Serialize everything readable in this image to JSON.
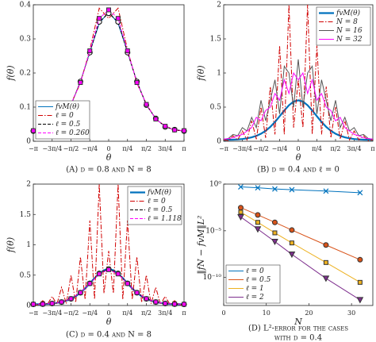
{
  "chart_data": [
    {
      "type": "line",
      "caption": "(A) d = 0.8 and N = 8",
      "xlabel": "θ",
      "ylabel": "f(θ)",
      "x": [
        -3.1416,
        -2.7489,
        -2.3562,
        -1.9635,
        -1.5708,
        -1.1781,
        -0.7854,
        -0.3927,
        0,
        0.3927,
        0.7854,
        1.1781,
        1.5708,
        1.9635,
        2.3562,
        2.7489,
        3.1416
      ],
      "xlim": [
        -3.1416,
        3.1416
      ],
      "xticks": [
        {
          "value": -3.1416,
          "label": "−π"
        },
        {
          "value": -2.3562,
          "label": "−3π/4"
        },
        {
          "value": -1.5708,
          "label": "−π/2"
        },
        {
          "value": -0.7854,
          "label": "−π/4"
        },
        0,
        {
          "value": 0.7854,
          "label": "π/4"
        },
        {
          "value": 1.5708,
          "label": "π/2"
        },
        {
          "value": 2.3562,
          "label": "3π/4"
        },
        {
          "value": 3.1416,
          "label": "π"
        }
      ],
      "ylim": [
        0,
        0.4
      ],
      "yticks": [
        0,
        0.1,
        0.2,
        0.3,
        0.4
      ],
      "legend": "lower left",
      "series": [
        {
          "name": "fvM(θ)",
          "color": "#0072bd",
          "linestyle": "-",
          "values": [
            0.03,
            0.033,
            0.043,
            0.066,
            0.107,
            0.174,
            0.262,
            0.345,
            0.38,
            0.345,
            0.262,
            0.174,
            0.107,
            0.066,
            0.043,
            0.033,
            0.03
          ]
        },
        {
          "name": "ℓ = 0",
          "color": "#d00000",
          "linestyle": "-.",
          "values": [
            0.031,
            0.032,
            0.045,
            0.064,
            0.11,
            0.17,
            0.268,
            0.39,
            0.36,
            0.39,
            0.268,
            0.17,
            0.11,
            0.064,
            0.045,
            0.032,
            0.031
          ]
        },
        {
          "name": "ℓ = 0.5",
          "color": "#000000",
          "linestyle": "--",
          "marker": "o",
          "marker_face": "#ffffff",
          "values": [
            0.03,
            0.034,
            0.042,
            0.067,
            0.106,
            0.175,
            0.26,
            0.35,
            0.375,
            0.35,
            0.26,
            0.175,
            0.106,
            0.067,
            0.042,
            0.034,
            0.03
          ]
        },
        {
          "name": "ℓ = 0.260",
          "color": "#ff00ff",
          "linestyle": "--",
          "marker": "s",
          "marker_face": "#ff00ff",
          "values": [
            0.031,
            0.033,
            0.044,
            0.065,
            0.108,
            0.172,
            0.265,
            0.36,
            0.385,
            0.36,
            0.265,
            0.172,
            0.108,
            0.065,
            0.044,
            0.033,
            0.031
          ]
        }
      ]
    },
    {
      "type": "line",
      "caption": "(B) d = 0.4 and ℓ = 0",
      "xlabel": "θ",
      "ylabel": "f(θ)",
      "x": [
        -3.1416,
        -2.9452,
        -2.7489,
        -2.5525,
        -2.3562,
        -2.1598,
        -1.9635,
        -1.7671,
        -1.5708,
        -1.3744,
        -1.1781,
        -0.9817,
        -0.7854,
        -0.589,
        -0.3927,
        -0.1963,
        0,
        0.1963,
        0.3927,
        0.589,
        0.7854,
        0.9817,
        1.1781,
        1.3744,
        1.5708,
        1.7671,
        1.9635,
        2.1598,
        2.3562,
        2.5525,
        2.7489,
        2.9452,
        3.1416
      ],
      "xlim": [
        -3.1416,
        3.1416
      ],
      "xticks": [
        {
          "value": -3.1416,
          "label": "−π"
        },
        {
          "value": -2.3562,
          "label": "−3π/4"
        },
        {
          "value": -1.5708,
          "label": "−π/2"
        },
        {
          "value": -0.7854,
          "label": "−π/4"
        },
        0,
        {
          "value": 0.7854,
          "label": "π/4"
        },
        {
          "value": 1.5708,
          "label": "π/2"
        },
        {
          "value": 2.3562,
          "label": "3π/4"
        },
        {
          "value": 3.1416,
          "label": "π"
        }
      ],
      "ylim": [
        0,
        2
      ],
      "yticks": [
        0,
        0.5,
        1,
        1.5,
        2
      ],
      "legend": "upper right",
      "series": [
        {
          "name": "fvM(θ)",
          "color": "#0072bd",
          "linestyle": "-",
          "width": 2.2,
          "values": [
            0.02,
            0.021,
            0.023,
            0.027,
            0.033,
            0.043,
            0.057,
            0.079,
            0.11,
            0.153,
            0.21,
            0.282,
            0.365,
            0.451,
            0.527,
            0.581,
            0.6,
            0.581,
            0.527,
            0.451,
            0.365,
            0.282,
            0.21,
            0.153,
            0.11,
            0.079,
            0.057,
            0.043,
            0.033,
            0.027,
            0.023,
            0.021,
            0.02
          ]
        },
        {
          "name": "N = 8",
          "color": "#d00000",
          "linestyle": "-.",
          "values": [
            0.02,
            0.01,
            0.08,
            0.02,
            0.15,
            0.02,
            0.3,
            0.03,
            0.5,
            0.05,
            0.8,
            0.1,
            1.4,
            0.1,
            2.0,
            0.2,
            0.9,
            0.2,
            2.0,
            0.1,
            1.4,
            0.1,
            0.8,
            0.05,
            0.5,
            0.03,
            0.3,
            0.02,
            0.15,
            0.02,
            0.08,
            0.01,
            0.02
          ]
        },
        {
          "name": "N = 16",
          "color": "#555555",
          "linestyle": "-",
          "values": [
            0.03,
            0.04,
            0.1,
            0.08,
            0.2,
            0.15,
            0.35,
            0.2,
            0.6,
            0.3,
            0.6,
            0.9,
            0.4,
            1.1,
            1.0,
            0.5,
            1.2,
            0.5,
            1.0,
            1.1,
            0.4,
            0.9,
            0.6,
            0.3,
            0.6,
            0.2,
            0.35,
            0.15,
            0.2,
            0.08,
            0.1,
            0.04,
            0.03
          ]
        },
        {
          "name": "N = 32",
          "color": "#ff00ff",
          "linestyle": "-",
          "values": [
            0.03,
            0.04,
            0.05,
            0.08,
            0.1,
            0.15,
            0.2,
            0.35,
            0.3,
            0.45,
            0.5,
            0.7,
            0.6,
            0.9,
            0.7,
            1.0,
            0.9,
            1.0,
            0.7,
            0.9,
            0.6,
            0.7,
            0.5,
            0.45,
            0.3,
            0.35,
            0.2,
            0.15,
            0.1,
            0.08,
            0.05,
            0.04,
            0.03
          ]
        }
      ]
    },
    {
      "type": "line",
      "caption": "(C) d = 0.4 and N = 8",
      "xlabel": "θ",
      "ylabel": "f(θ)",
      "x": [
        -3.1416,
        -2.9452,
        -2.7489,
        -2.5525,
        -2.3562,
        -2.1598,
        -1.9635,
        -1.7671,
        -1.5708,
        -1.3744,
        -1.1781,
        -0.9817,
        -0.7854,
        -0.589,
        -0.3927,
        -0.1963,
        0,
        0.1963,
        0.3927,
        0.589,
        0.7854,
        0.9817,
        1.1781,
        1.3744,
        1.5708,
        1.7671,
        1.9635,
        2.1598,
        2.3562,
        2.5525,
        2.7489,
        2.9452,
        3.1416
      ],
      "xlim": [
        -3.1416,
        3.1416
      ],
      "xticks": [
        {
          "value": -3.1416,
          "label": "−π"
        },
        {
          "value": -2.3562,
          "label": "−3π/4"
        },
        {
          "value": -1.5708,
          "label": "−π/2"
        },
        {
          "value": -0.7854,
          "label": "−π/4"
        },
        0,
        {
          "value": 0.7854,
          "label": "π/4"
        },
        {
          "value": 1.5708,
          "label": "π/2"
        },
        {
          "value": 2.3562,
          "label": "3π/4"
        },
        {
          "value": 3.1416,
          "label": "π"
        }
      ],
      "ylim": [
        0,
        2
      ],
      "yticks": [
        0,
        0.5,
        1,
        1.5,
        2
      ],
      "legend": "upper right",
      "series": [
        {
          "name": "fvM(θ)",
          "color": "#0072bd",
          "linestyle": "-",
          "width": 2.2,
          "values": [
            0.02,
            0.021,
            0.023,
            0.027,
            0.033,
            0.043,
            0.057,
            0.079,
            0.11,
            0.153,
            0.21,
            0.282,
            0.365,
            0.451,
            0.527,
            0.581,
            0.6,
            0.581,
            0.527,
            0.451,
            0.365,
            0.282,
            0.21,
            0.153,
            0.11,
            0.079,
            0.057,
            0.043,
            0.033,
            0.027,
            0.023,
            0.021,
            0.02
          ]
        },
        {
          "name": "ℓ = 0",
          "color": "#d00000",
          "linestyle": "-.",
          "values": [
            0.02,
            0.01,
            0.08,
            0.02,
            0.15,
            0.02,
            0.3,
            0.03,
            0.5,
            0.05,
            0.8,
            0.1,
            1.4,
            0.1,
            2.0,
            0.2,
            0.9,
            0.2,
            2.0,
            0.1,
            1.4,
            0.1,
            0.8,
            0.05,
            0.5,
            0.03,
            0.3,
            0.02,
            0.15,
            0.02,
            0.08,
            0.01,
            0.02
          ]
        },
        {
          "name": "ℓ = 0.5",
          "color": "#000000",
          "linestyle": "--",
          "marker": "o",
          "marker_face": "#ffffff",
          "x": [
            -3.1416,
            -2.7489,
            -2.3562,
            -1.9635,
            -1.5708,
            -1.1781,
            -0.7854,
            -0.3927,
            0,
            0.3927,
            0.7854,
            1.1781,
            1.5708,
            1.9635,
            2.3562,
            2.7489,
            3.1416
          ],
          "values": [
            0.02,
            0.023,
            0.033,
            0.057,
            0.11,
            0.21,
            0.365,
            0.527,
            0.6,
            0.527,
            0.365,
            0.21,
            0.11,
            0.057,
            0.033,
            0.023,
            0.02
          ]
        },
        {
          "name": "ℓ = 1.118",
          "color": "#ff00ff",
          "linestyle": "--",
          "marker": "s",
          "marker_face": "#ff00ff",
          "x": [
            -3.1416,
            -2.7489,
            -2.3562,
            -1.9635,
            -1.5708,
            -1.1781,
            -0.7854,
            -0.3927,
            0,
            0.3927,
            0.7854,
            1.1781,
            1.5708,
            1.9635,
            2.3562,
            2.7489,
            3.1416
          ],
          "values": [
            0.021,
            0.024,
            0.034,
            0.058,
            0.112,
            0.212,
            0.362,
            0.52,
            0.59,
            0.52,
            0.362,
            0.212,
            0.112,
            0.058,
            0.034,
            0.024,
            0.021
          ]
        }
      ]
    },
    {
      "type": "line",
      "caption": [
        "(D) L²-error for the cases",
        "with d = 0.4"
      ],
      "xlabel": "N",
      "ylabel": "‖fN − fvM‖L²",
      "x": [
        4,
        8,
        12,
        16,
        24,
        32
      ],
      "xlim": [
        0,
        35
      ],
      "xticks": [
        0,
        10,
        20,
        30
      ],
      "log_y": true,
      "ylim": [
        1e-13,
        1
      ],
      "yticks": [
        {
          "value": 1,
          "label": "10⁰"
        },
        {
          "value": 1e-05,
          "label": "10⁻⁵"
        },
        {
          "value": 1e-10,
          "label": "10⁻¹⁰"
        }
      ],
      "legend": "lower left",
      "series": [
        {
          "name": "ℓ = 0",
          "color": "#0072bd",
          "linestyle": "-",
          "marker": "x",
          "values": [
            0.5,
            0.4,
            0.3,
            0.25,
            0.18,
            0.12
          ]
        },
        {
          "name": "ℓ = 0.5",
          "color": "#d95319",
          "linestyle": "-",
          "marker": "o",
          "marker_face": "#d95319",
          "values": [
            0.003,
            0.0005,
            8e-05,
            1.2e-05,
            3e-07,
            8e-09
          ]
        },
        {
          "name": "ℓ = 1",
          "color": "#edb120",
          "linestyle": "-",
          "marker": "s",
          "marker_face": "#edb120",
          "values": [
            0.001,
            8e-05,
            6e-06,
            5e-07,
            4e-09,
            3e-11
          ]
        },
        {
          "name": "ℓ = 2",
          "color": "#7e2f8e",
          "linestyle": "-",
          "marker": "v",
          "marker_face": "#7e2f8e",
          "values": [
            0.0003,
            1.5e-05,
            7e-07,
            3e-08,
            8e-11,
            4e-13
          ]
        }
      ]
    }
  ]
}
